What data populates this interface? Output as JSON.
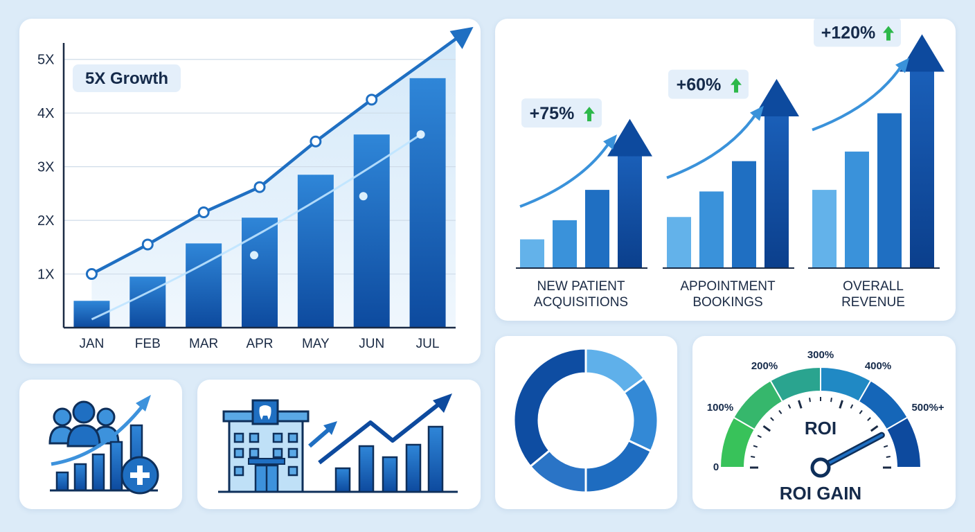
{
  "colors": {
    "background": "#dcebf8",
    "dark_blue": "#0d4a9e",
    "mid_blue": "#1f6fc2",
    "light_blue": "#5aa8e6",
    "green": "#2db84a"
  },
  "chart_data": [
    {
      "type": "bar",
      "badge": "5X Growth",
      "categories": [
        "JAN",
        "FEB",
        "MAR",
        "APR",
        "MAY",
        "JUN",
        "JUL"
      ],
      "values": [
        0.5,
        0.95,
        1.57,
        2.05,
        2.85,
        3.6,
        4.65
      ],
      "line_values": [
        1.0,
        1.55,
        2.15,
        2.62,
        3.47,
        4.25,
        5.0
      ],
      "y_ticks": [
        "1X",
        "2X",
        "3X",
        "4X",
        "5X"
      ],
      "ylim": [
        0,
        5.5
      ],
      "grid": true
    },
    {
      "type": "bar",
      "groups": [
        {
          "label": [
            "NEW PATIENT",
            "ACQUISITIONS"
          ],
          "change": "+75%",
          "values": [
            0.18,
            0.3,
            0.49,
            0.9
          ]
        },
        {
          "label": [
            "APPOINTMENT",
            "BOOKINGS"
          ],
          "change": "+60%",
          "values": [
            0.32,
            0.48,
            0.67,
            1.15
          ]
        },
        {
          "label": [
            "OVERALL",
            "REVENUE"
          ],
          "change": "+120%",
          "values": [
            0.49,
            0.73,
            0.97,
            1.43
          ]
        }
      ]
    },
    {
      "type": "pie",
      "segments": [
        15,
        17,
        18,
        14,
        36
      ],
      "colors": [
        "#5fb0ea",
        "#3389d6",
        "#1e6cc0",
        "#2a74c6",
        "#0e4da2"
      ]
    },
    {
      "type": "gauge",
      "title": "ROI",
      "caption": "ROI GAIN",
      "scale_labels": [
        "0",
        "100%",
        "200%",
        "300%",
        "400%",
        "500%+"
      ],
      "value_percent": 480
    }
  ],
  "icons": {
    "patients": "patient-growth-icon",
    "clinic": "dental-clinic-growth-icon"
  }
}
